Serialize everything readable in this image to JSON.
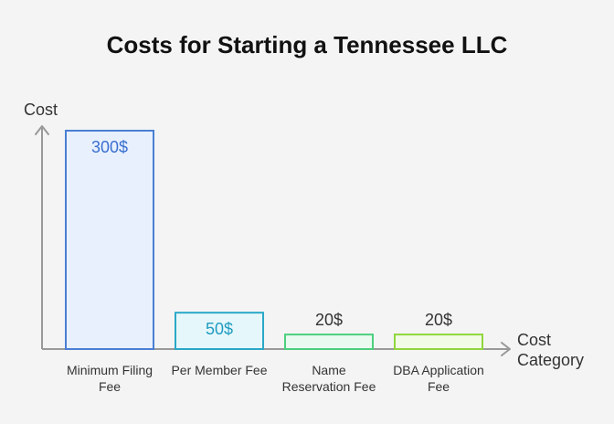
{
  "chart_data": {
    "type": "bar",
    "title": "Costs for Starting a Tennessee LLC",
    "xlabel": [
      "Cost",
      "Category"
    ],
    "ylabel": "Cost",
    "categories": [
      [
        "Minimum Filing",
        "Fee"
      ],
      [
        "Per Member Fee"
      ],
      [
        "Name",
        "Reservation Fee"
      ],
      [
        "DBA Application",
        "Fee"
      ]
    ],
    "values": [
      300,
      50,
      20,
      20
    ],
    "value_labels": [
      "300$",
      "50$",
      "20$",
      "20$"
    ],
    "ylim": [
      0,
      300
    ],
    "grid": false,
    "legend": "none",
    "bar_styles": [
      {
        "fill": "#e8f0fe",
        "stroke": "#4a7fd4",
        "label_color": "#3a6fcf",
        "label_position": "inside"
      },
      {
        "fill": "#e6f7fb",
        "stroke": "#2aa8c8",
        "label_color": "#1f9cc0",
        "label_position": "inside"
      },
      {
        "fill": "#eafaf0",
        "stroke": "#4ccf7e",
        "label_color": "#333333",
        "label_position": "above"
      },
      {
        "fill": "#f2fbe6",
        "stroke": "#8fd63c",
        "label_color": "#333333",
        "label_position": "above"
      }
    ],
    "axis_color": "#999999"
  }
}
